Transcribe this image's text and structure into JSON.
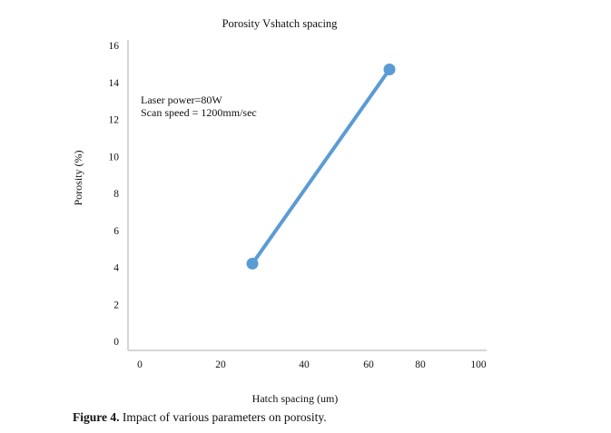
{
  "chart_data": {
    "type": "line",
    "title": "Porosity Vshatch spacing",
    "xlabel": "Hatch spacing (um)",
    "ylabel": "Porosity (%)",
    "xlim": [
      0,
      100
    ],
    "ylim": [
      0,
      16
    ],
    "xticks": [
      "0",
      "20",
      "40",
      "60",
      "80",
      "100"
    ],
    "yticks": [
      "0",
      "2",
      "4",
      "6",
      "8",
      "10",
      "12",
      "14",
      "16"
    ],
    "grid": false,
    "annotations": [
      "Laser power=80W",
      "Scan speed = 1200mm/sec"
    ],
    "series": [
      {
        "x": [
          35,
          80
        ],
        "y": [
          4.2,
          14.7
        ],
        "color": "#5b9bd5"
      }
    ]
  },
  "figure": {
    "label": "Figure 4.",
    "caption": "Impact of various parameters on porosity."
  },
  "colors": {
    "axis": "#c8c8c8",
    "series": "#5b9bd5"
  }
}
